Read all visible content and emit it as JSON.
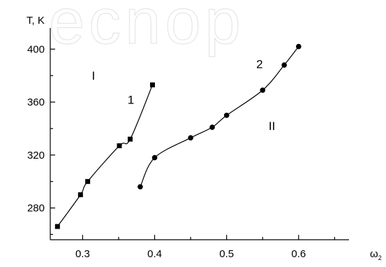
{
  "chart_data": {
    "type": "scatter",
    "title": "",
    "ylabel": "T, K",
    "xlabel": "ω",
    "xlabel_sub": "2",
    "xlim": [
      0.255,
      0.67
    ],
    "ylim": [
      256,
      416
    ],
    "x_ticks": [
      0.3,
      0.4,
      0.5,
      0.6
    ],
    "x_tick_labels": [
      "0.3",
      "0.4",
      "0.5",
      "0.6"
    ],
    "y_ticks": [
      280,
      320,
      360,
      400
    ],
    "y_tick_labels": [
      "280",
      "320",
      "360",
      "400"
    ],
    "grid": false,
    "series": [
      {
        "name": "1",
        "marker": "square",
        "x": [
          0.265,
          0.297,
          0.307,
          0.351,
          0.366,
          0.397
        ],
        "y": [
          266,
          290,
          300,
          327,
          332,
          373
        ]
      },
      {
        "name": "2",
        "marker": "circle",
        "x": [
          0.38,
          0.4,
          0.45,
          0.48,
          0.5,
          0.55,
          0.58,
          0.6
        ],
        "y": [
          296,
          318,
          333,
          341,
          350,
          369,
          388,
          402
        ]
      }
    ],
    "annotations": [
      {
        "text": "I",
        "x": 0.315,
        "y": 377
      },
      {
        "text": "II",
        "x": 0.563,
        "y": 339
      }
    ]
  },
  "watermark": "ecnop"
}
